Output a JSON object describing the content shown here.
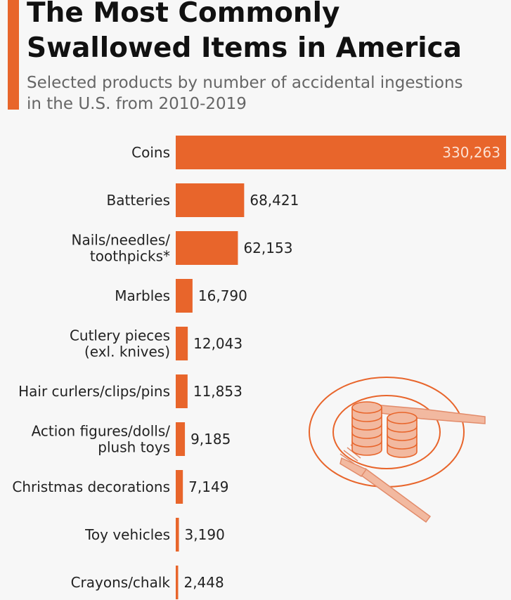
{
  "header": {
    "title": "The Most Commonly\nSwallowed Items in America",
    "subtitle": "Selected products by number of accidental ingestions\nin the U.S. from 2010-2019"
  },
  "colors": {
    "bar": "#e8652b",
    "accent": "#e8652b"
  },
  "illustration": {
    "icon": "plate-with-coins-fork-knife-icon"
  },
  "chart_data": {
    "type": "bar",
    "orientation": "horizontal",
    "categories": [
      [
        "Coins"
      ],
      [
        "Batteries"
      ],
      [
        "Nails/needles/",
        "toothpicks*"
      ],
      [
        "Marbles"
      ],
      [
        "Cutlery pieces",
        "(exl. knives)"
      ],
      [
        "Hair curlers/clips/pins"
      ],
      [
        "Action figures/dolls/",
        "plush toys"
      ],
      [
        "Christmas decorations"
      ],
      [
        "Toy vehicles"
      ],
      [
        "Crayons/chalk"
      ]
    ],
    "values": [
      330263,
      68421,
      62153,
      16790,
      12043,
      11853,
      9185,
      7149,
      3190,
      2448
    ],
    "value_labels": [
      "330,263",
      "68,421",
      "62,153",
      "16,790",
      "12,043",
      "11,853",
      "9,185",
      "7,149",
      "3,190",
      "2,448"
    ],
    "xlim": [
      0,
      330263
    ],
    "grid": false,
    "legend": "none"
  }
}
